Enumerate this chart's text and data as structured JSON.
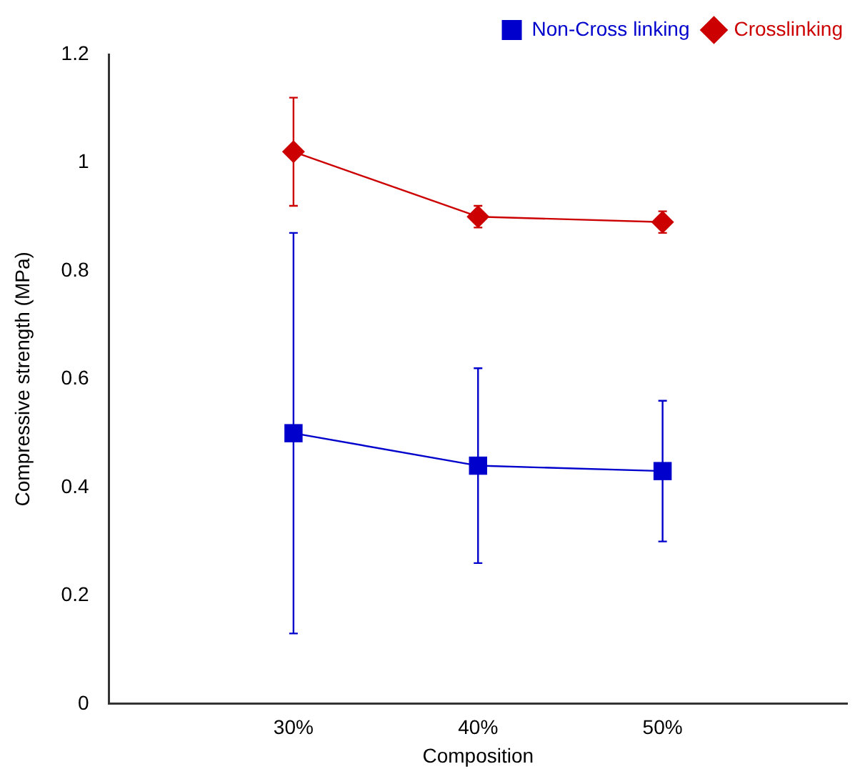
{
  "chart_data": {
    "type": "line",
    "xlabel": "Composition",
    "ylabel": "Compressive strength (MPa)",
    "categories": [
      "30%",
      "40%",
      "50%"
    ],
    "series": [
      {
        "name": "Non-Cross linking",
        "color": "#0000cc",
        "marker": "square",
        "values": [
          0.5,
          0.44,
          0.43
        ],
        "errors": [
          [
            0.13,
            0.87
          ],
          [
            0.26,
            0.62
          ],
          [
            0.3,
            0.56
          ]
        ]
      },
      {
        "name": "Crosslinking",
        "color": "#cc0000",
        "marker": "diamond",
        "values": [
          1.02,
          0.9,
          0.89
        ],
        "errors": [
          [
            0.92,
            1.12
          ],
          [
            0.88,
            0.92
          ],
          [
            0.87,
            0.91
          ]
        ]
      }
    ],
    "ylim": [
      0,
      1.2
    ],
    "yticks": [
      0,
      0.2,
      0.4,
      0.6,
      0.8,
      1,
      1.2
    ],
    "grid": false,
    "legend": "top right"
  }
}
